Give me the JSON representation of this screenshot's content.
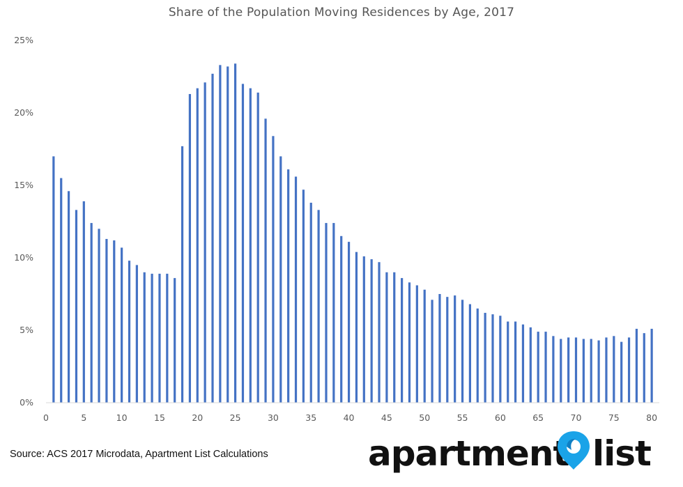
{
  "chart_data": {
    "type": "bar",
    "title": "Share of the Population Moving Residences by Age, 2017",
    "xlabel": "",
    "ylabel": "",
    "x": [
      1,
      2,
      3,
      4,
      5,
      6,
      7,
      8,
      9,
      10,
      11,
      12,
      13,
      14,
      15,
      16,
      17,
      18,
      19,
      20,
      21,
      22,
      23,
      24,
      25,
      26,
      27,
      28,
      29,
      30,
      31,
      32,
      33,
      34,
      35,
      36,
      37,
      38,
      39,
      40,
      41,
      42,
      43,
      44,
      45,
      46,
      47,
      48,
      49,
      50,
      51,
      52,
      53,
      54,
      55,
      56,
      57,
      58,
      59,
      60,
      61,
      62,
      63,
      64,
      65,
      66,
      67,
      68,
      69,
      70,
      71,
      72,
      73,
      74,
      75,
      76,
      77,
      78,
      79,
      80
    ],
    "values": [
      17.0,
      15.5,
      14.6,
      13.3,
      13.9,
      12.4,
      12.0,
      11.3,
      11.2,
      10.7,
      9.8,
      9.5,
      9.0,
      8.9,
      8.9,
      8.9,
      8.6,
      17.7,
      21.3,
      21.7,
      22.1,
      22.7,
      23.3,
      23.2,
      23.4,
      22.0,
      21.7,
      21.4,
      19.6,
      18.4,
      17.0,
      16.1,
      15.6,
      14.7,
      13.8,
      13.3,
      12.4,
      12.4,
      11.5,
      11.1,
      10.4,
      10.1,
      9.9,
      9.7,
      9.0,
      9.0,
      8.6,
      8.3,
      8.1,
      7.8,
      7.1,
      7.5,
      7.3,
      7.4,
      7.1,
      6.8,
      6.5,
      6.2,
      6.1,
      6.0,
      5.6,
      5.6,
      5.4,
      5.2,
      4.9,
      4.9,
      4.6,
      4.4,
      4.5,
      4.5,
      4.4,
      4.4,
      4.3,
      4.5,
      4.6,
      4.2,
      4.5,
      5.1,
      4.8,
      5.1
    ],
    "ylim": [
      0,
      25
    ],
    "yticks": [
      "0%",
      "5%",
      "10%",
      "15%",
      "20%",
      "25%"
    ],
    "ytick_values": [
      0,
      5,
      10,
      15,
      20,
      25
    ],
    "xlim": [
      0,
      81
    ],
    "xticks": [
      0,
      5,
      10,
      15,
      20,
      25,
      30,
      35,
      40,
      45,
      50,
      55,
      60,
      65,
      70,
      75,
      80
    ],
    "grid": false,
    "legend": "none",
    "bar_color": "#4472C4"
  },
  "source": "Source: ACS 2017 Microdata, Apartment List Calculations",
  "logo": {
    "part1": "apartment",
    "part2": "list",
    "pin_color": "#1AA3E8"
  },
  "colors": {
    "title": "#555555",
    "axis_text": "#595959",
    "axis_line": "#D9D9D9"
  }
}
